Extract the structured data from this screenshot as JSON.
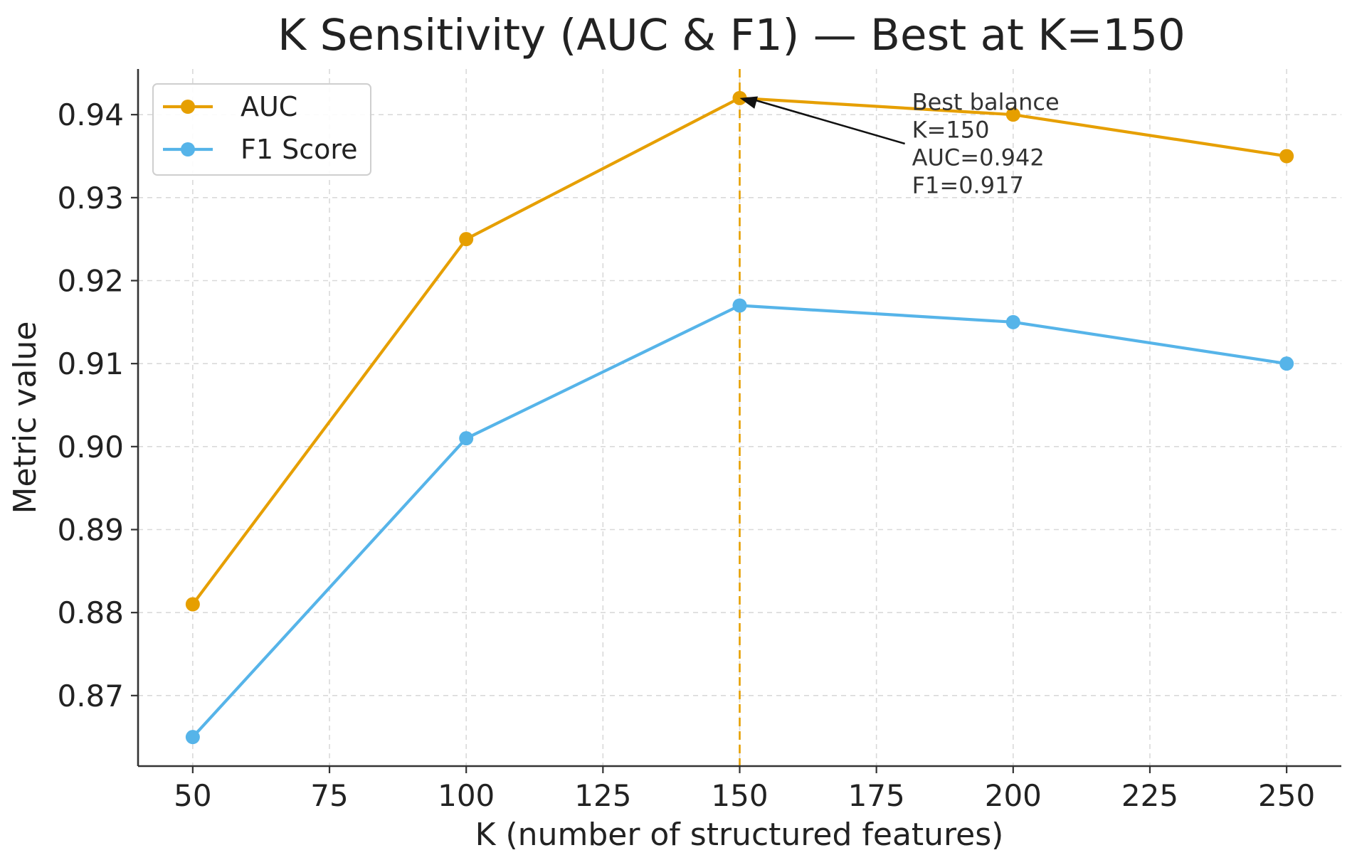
{
  "chart_data": {
    "type": "line",
    "title": "K Sensitivity (AUC & F1) — Best at K=150",
    "xlabel": "K (number of structured features)",
    "ylabel": "Metric value",
    "x": [
      50,
      100,
      150,
      200,
      250
    ],
    "xlim": [
      40,
      260
    ],
    "ylim": [
      0.8615,
      0.9455
    ],
    "x_ticks": [
      50,
      75,
      100,
      125,
      150,
      175,
      200,
      225,
      250
    ],
    "y_ticks": [
      0.87,
      0.88,
      0.89,
      0.9,
      0.91,
      0.92,
      0.93,
      0.94
    ],
    "x_tick_labels": [
      "50",
      "75",
      "100",
      "125",
      "150",
      "175",
      "200",
      "225",
      "250"
    ],
    "y_tick_labels": [
      "0.87",
      "0.88",
      "0.89",
      "0.90",
      "0.91",
      "0.92",
      "0.93",
      "0.94"
    ],
    "grid": true,
    "legend_position": "top-left",
    "series": [
      {
        "name": "AUC",
        "color": "#E69F00",
        "values": [
          0.881,
          0.925,
          0.942,
          0.94,
          0.935
        ]
      },
      {
        "name": "F1 Score",
        "color": "#56B4E9",
        "values": [
          0.865,
          0.901,
          0.917,
          0.915,
          0.91
        ]
      }
    ],
    "reference_line": {
      "x": 150,
      "color": "#E69F00",
      "style": "dashed"
    },
    "annotation": {
      "lines": [
        "Best balance",
        "K=150",
        "AUC=0.942",
        "F1=0.917"
      ],
      "points_to": {
        "x": 150,
        "y": 0.942
      },
      "text_anchor": {
        "x": 181.5,
        "y": 0.9365
      },
      "arrow_color": "#111111"
    }
  }
}
